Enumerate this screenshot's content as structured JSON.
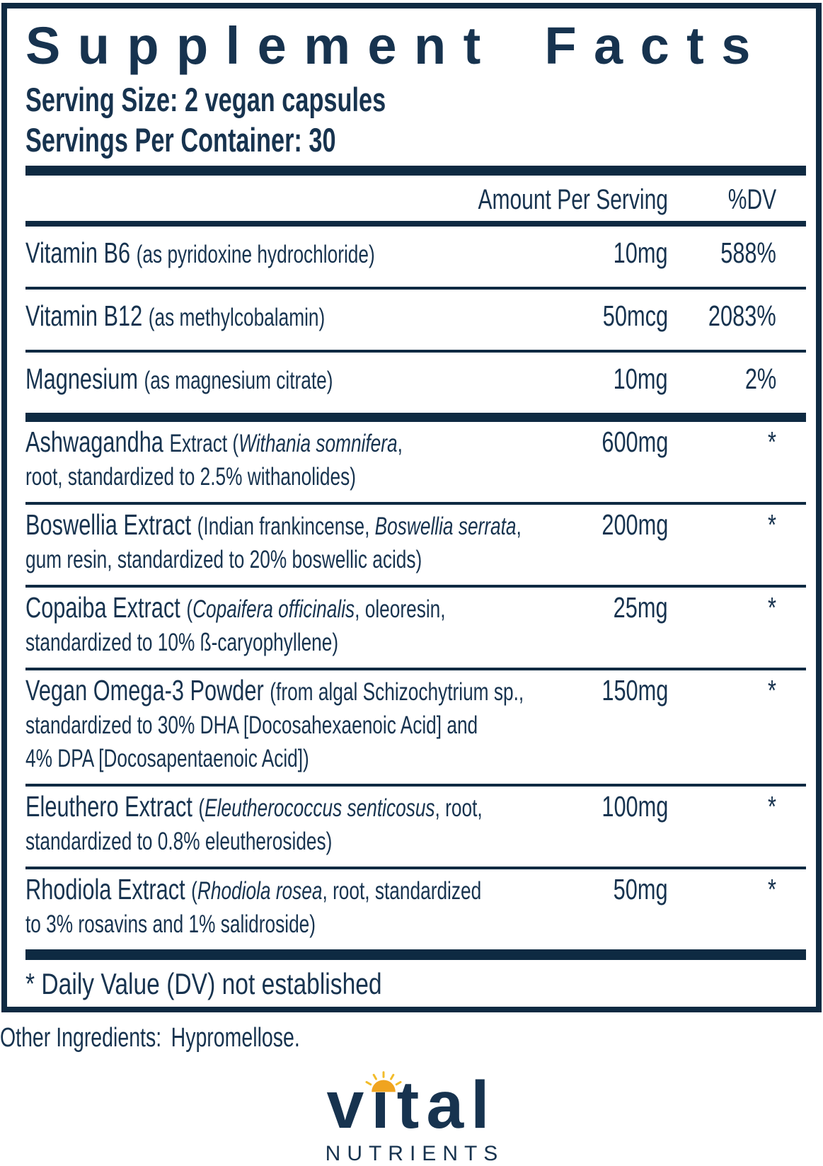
{
  "panel": {
    "title": "Supplement Facts",
    "serving_size": "Serving Size: 2 vegan capsules",
    "servings_per_container": "Servings Per Container: 30"
  },
  "table": {
    "amount_header": "Amount Per Serving",
    "dv_header": "%DV",
    "footnote": "* Daily Value (DV) not established",
    "groups": [
      {
        "rows": [
          {
            "lines": [
              [
                {
                  "t": "Vitamin B6 ",
                  "s": "lg"
                },
                {
                  "t": "(as pyridoxine hydrochloride)",
                  "s": "sm"
                }
              ]
            ],
            "amount": "10mg",
            "dv": "588%"
          },
          {
            "lines": [
              [
                {
                  "t": "Vitamin B12 ",
                  "s": "lg"
                },
                {
                  "t": "(as methylcobalamin)",
                  "s": "sm"
                }
              ]
            ],
            "amount": "50mcg",
            "dv": "2083%"
          },
          {
            "lines": [
              [
                {
                  "t": "Magnesium ",
                  "s": "lg"
                },
                {
                  "t": "(as magnesium citrate)",
                  "s": "sm"
                }
              ]
            ],
            "amount": "10mg",
            "dv": "2%"
          }
        ]
      },
      {
        "rows": [
          {
            "lines": [
              [
                {
                  "t": "Ashwagandha ",
                  "s": "lg"
                },
                {
                  "t": "Extract (",
                  "s": "sm"
                },
                {
                  "t": "Withania somnifera",
                  "s": "smi"
                },
                {
                  "t": ",",
                  "s": "sm"
                }
              ],
              [
                {
                  "t": "root, standardized to 2.5% withanolides)",
                  "s": "sm"
                }
              ]
            ],
            "amount": "600mg",
            "dv": "*"
          },
          {
            "lines": [
              [
                {
                  "t": "Boswellia Extract ",
                  "s": "lg"
                },
                {
                  "t": "(Indian frankincense, ",
                  "s": "sm"
                },
                {
                  "t": "Boswellia serrata",
                  "s": "smi"
                },
                {
                  "t": ",",
                  "s": "sm"
                }
              ],
              [
                {
                  "t": "gum resin, standardized to 20% boswellic acids)",
                  "s": "sm"
                }
              ]
            ],
            "amount": "200mg",
            "dv": "*"
          },
          {
            "lines": [
              [
                {
                  "t": "Copaiba Extract ",
                  "s": "lg"
                },
                {
                  "t": "(",
                  "s": "sm"
                },
                {
                  "t": "Copaifera officinalis",
                  "s": "smi"
                },
                {
                  "t": ", oleoresin,",
                  "s": "sm"
                }
              ],
              [
                {
                  "t": "standardized to 10% ß-caryophyllene)",
                  "s": "sm"
                }
              ]
            ],
            "amount": "25mg",
            "dv": "*"
          },
          {
            "lines": [
              [
                {
                  "t": "Vegan Omega-3 Powder ",
                  "s": "lg"
                },
                {
                  "t": "(from algal Schizochytrium sp.,",
                  "s": "sm"
                }
              ],
              [
                {
                  "t": "standardized to 30% DHA [Docosahexaenoic Acid] and",
                  "s": "sm"
                }
              ],
              [
                {
                  "t": "4% DPA [Docosapentaenoic Acid])",
                  "s": "sm"
                }
              ]
            ],
            "amount": "150mg",
            "dv": "*"
          },
          {
            "lines": [
              [
                {
                  "t": "Eleuthero Extract ",
                  "s": "lg"
                },
                {
                  "t": "(",
                  "s": "sm"
                },
                {
                  "t": "Eleutherococcus senticosus",
                  "s": "smi"
                },
                {
                  "t": ", root,",
                  "s": "sm"
                }
              ],
              [
                {
                  "t": "standardized to 0.8% eleutherosides)",
                  "s": "sm"
                }
              ]
            ],
            "amount": "100mg",
            "dv": "*"
          },
          {
            "lines": [
              [
                {
                  "t": "Rhodiola Extract ",
                  "s": "lg"
                },
                {
                  "t": "(",
                  "s": "sm"
                },
                {
                  "t": "Rhodiola rosea",
                  "s": "smi"
                },
                {
                  "t": ", root, standardized",
                  "s": "sm"
                }
              ],
              [
                {
                  "t": "to 3% rosavins and 1% salidroside)",
                  "s": "sm"
                }
              ]
            ],
            "amount": "50mg",
            "dv": "*"
          }
        ]
      }
    ]
  },
  "other_ingredients": {
    "label": "Other Ingredients:",
    "value": "Hypromellose."
  },
  "brand": {
    "word": "vital",
    "subtext": "NUTRIENTS",
    "sun_icon": "sun-icon"
  },
  "colors": {
    "navy": "#17334F",
    "bar": "#0E2A42",
    "sun_gold": "#F0A41F",
    "sun_rays": "#F2BC2A"
  }
}
